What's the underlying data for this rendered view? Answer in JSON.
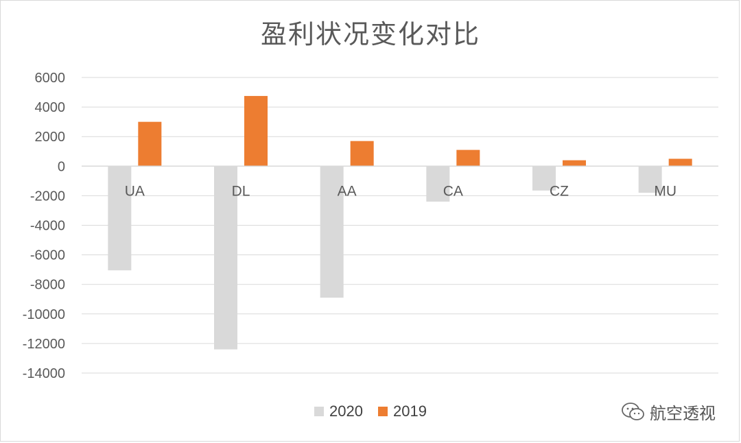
{
  "chart_data": {
    "type": "bar",
    "title": "盈利状况变化对比",
    "categories": [
      "UA",
      "DL",
      "AA",
      "CA",
      "CZ",
      "MU"
    ],
    "series": [
      {
        "name": "2020",
        "color": "#d9d9d9",
        "values": [
          -7050,
          -12400,
          -8900,
          -2400,
          -1650,
          -1800
        ]
      },
      {
        "name": "2019",
        "color": "#ed7d31",
        "values": [
          3000,
          4750,
          1700,
          1100,
          400,
          500
        ]
      }
    ],
    "ylim": [
      -14000,
      6000
    ],
    "yticks": [
      6000,
      4000,
      2000,
      0,
      -2000,
      -4000,
      -6000,
      -8000,
      -10000,
      -12000,
      -14000
    ],
    "ytick_labels": [
      "6000",
      "4000",
      "2000",
      "0",
      "-2000",
      "-4000",
      "-6000",
      "-8000",
      "-10000",
      "-12000",
      "-14000"
    ],
    "grid": true,
    "legend": "bottom"
  },
  "watermark": {
    "text": "航空透视",
    "icon": "wechat-icon"
  }
}
